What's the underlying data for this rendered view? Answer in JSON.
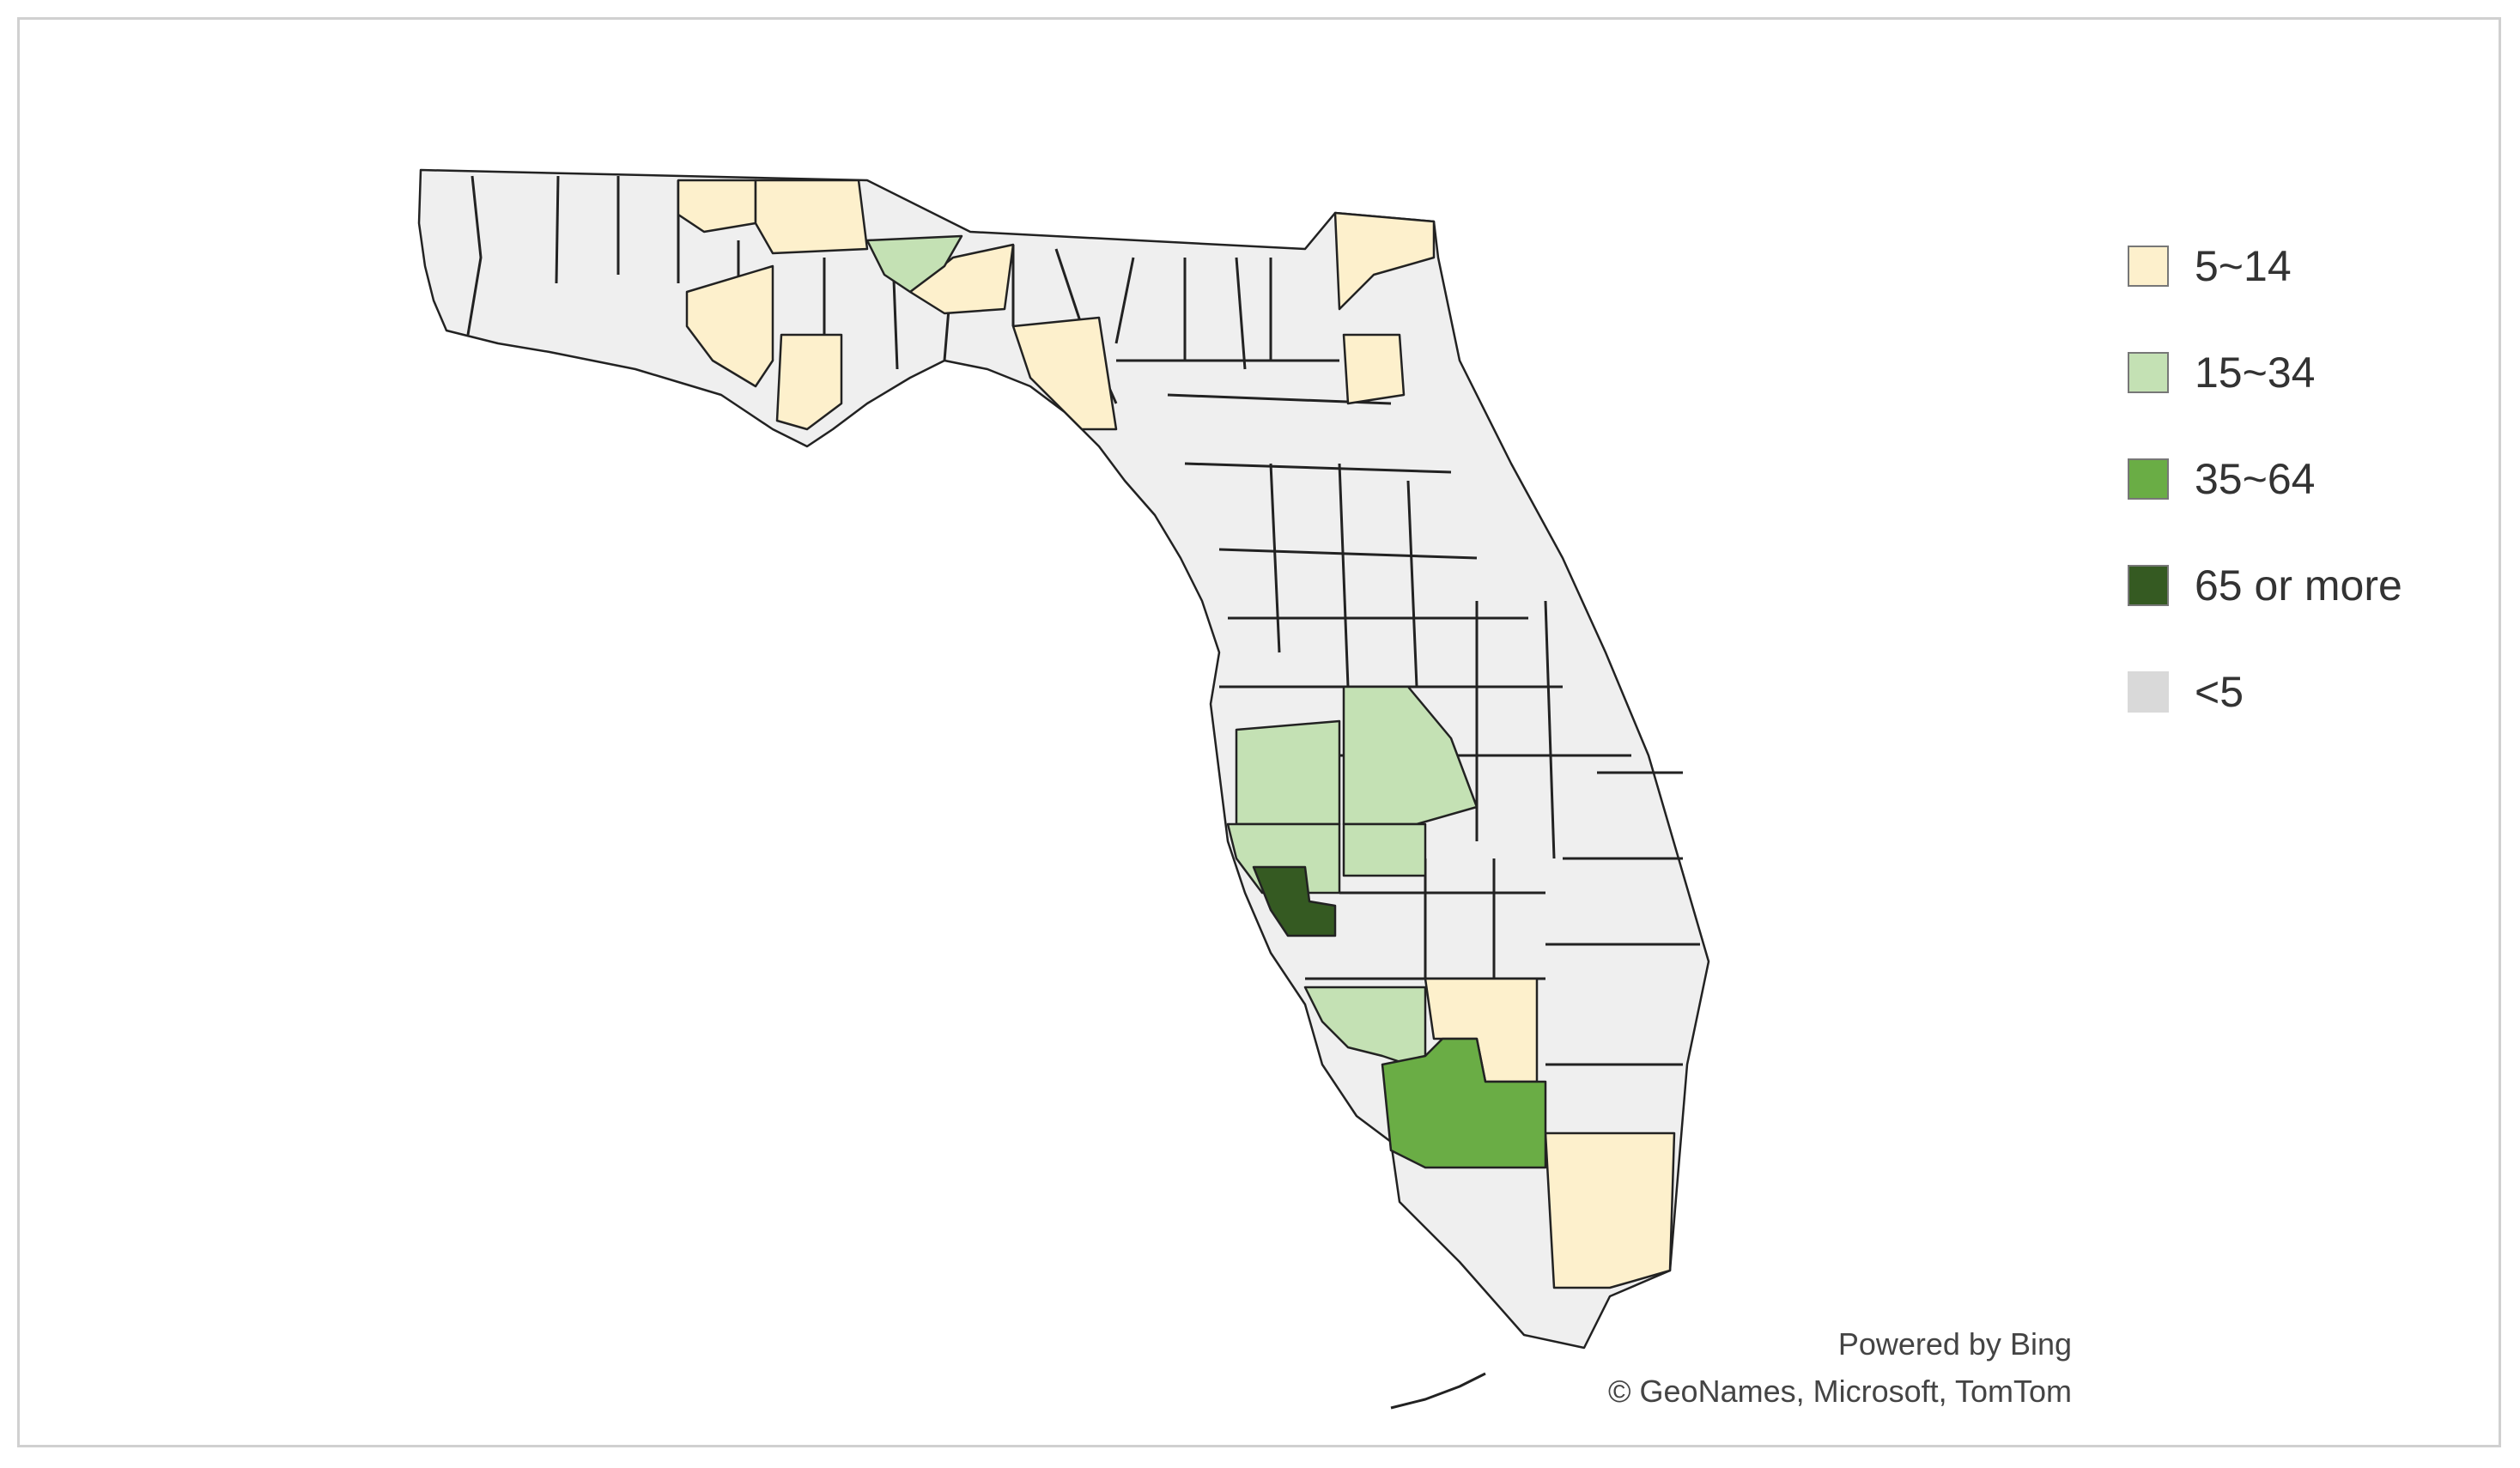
{
  "legend": {
    "items": [
      {
        "label": "5~14",
        "color": "#fdf0cc"
      },
      {
        "label": "15~34",
        "color": "#c4e1b4"
      },
      {
        "label": "35~64",
        "color": "#6aad45"
      },
      {
        "label": "65 or more",
        "color": "#355a22"
      },
      {
        "label": "<5",
        "color": "#d9d9d9"
      }
    ]
  },
  "colors": {
    "base_county": "#efefef",
    "border": "#222222"
  },
  "attribution": {
    "line1": "Powered by Bing",
    "line2": "© GeoNames, Microsoft, TomTom"
  }
}
